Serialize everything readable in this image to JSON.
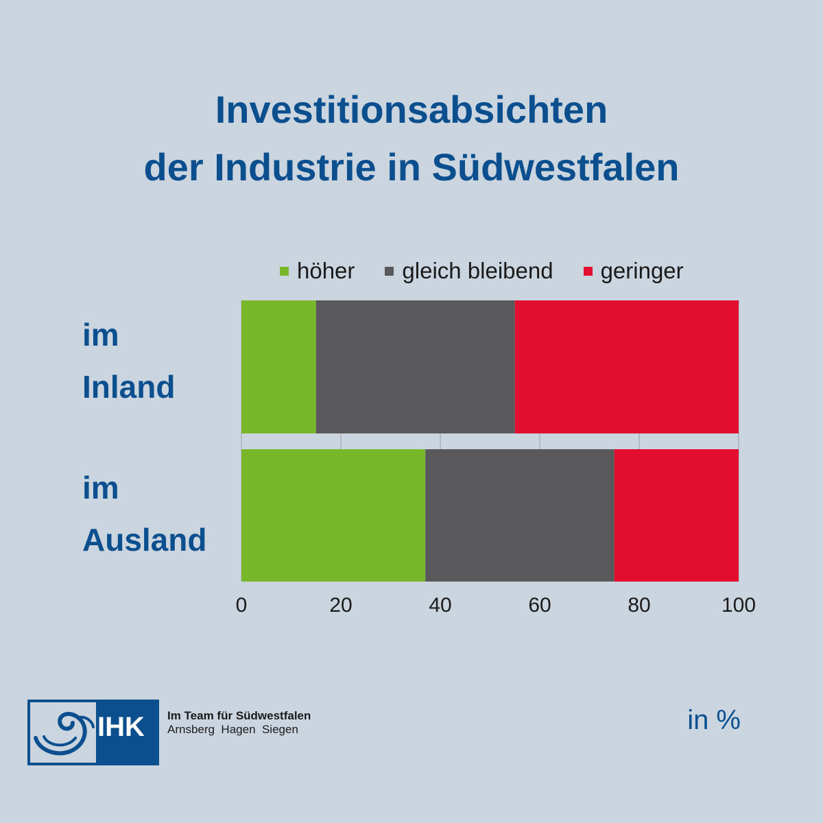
{
  "title": {
    "line1": "Investitionsabsichten",
    "line2": "der Industrie in Südwestfalen"
  },
  "legend": [
    {
      "label": "höher",
      "color": "#78b72a"
    },
    {
      "label": "gleich bleibend",
      "color": "#59595c"
    },
    {
      "label": "geringer",
      "color": "#e30d2f"
    }
  ],
  "unit": "in %",
  "branding": {
    "logo_text": "IHK",
    "tagline": "Im Team für Südwestfalen",
    "locations": "Arnsberg  Hagen  Siegen"
  },
  "chart_data": {
    "type": "bar",
    "orientation": "horizontal",
    "stacked": true,
    "title": "Investitionsabsichten der Industrie in Südwestfalen",
    "categories": [
      {
        "line1": "im",
        "line2": "Inland"
      },
      {
        "line1": "im",
        "line2": "Ausland"
      }
    ],
    "series": [
      {
        "name": "höher",
        "color": "#78b72a",
        "values": [
          15,
          37
        ]
      },
      {
        "name": "gleich bleibend",
        "color": "#59595c",
        "values": [
          40,
          38
        ]
      },
      {
        "name": "geringer",
        "color": "#e30d2f",
        "values": [
          45,
          25
        ]
      }
    ],
    "xlim": [
      0,
      100
    ],
    "xticks": [
      0,
      20,
      40,
      60,
      80,
      100
    ],
    "grid": true,
    "legend_position": "top"
  }
}
